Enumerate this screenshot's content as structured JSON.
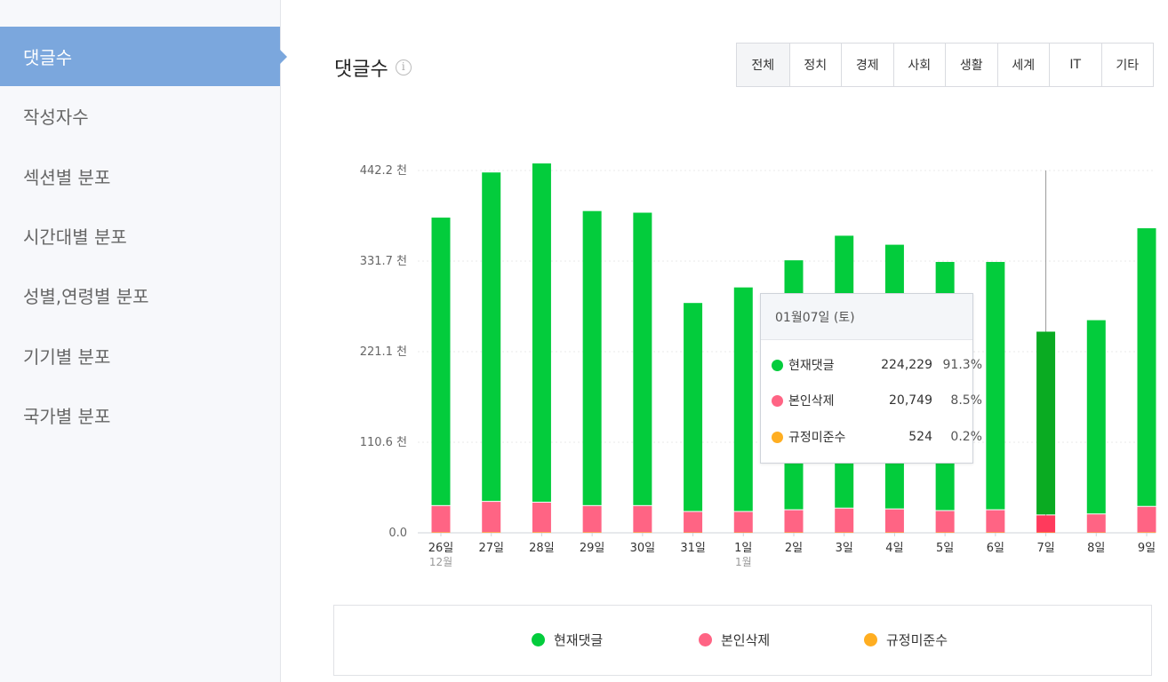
{
  "sidebar": {
    "items": [
      {
        "label": "댓글수",
        "active": true
      },
      {
        "label": "작성자수"
      },
      {
        "label": "섹션별 분포"
      },
      {
        "label": "시간대별 분포"
      },
      {
        "label": "성별,연령별 분포"
      },
      {
        "label": "기기별 분포"
      },
      {
        "label": "국가별 분포"
      }
    ]
  },
  "header": {
    "title": "댓글수",
    "info_icon": "i",
    "tabs": [
      "전체",
      "정치",
      "경제",
      "사회",
      "생활",
      "세계",
      "IT",
      "기타"
    ],
    "selected_tab": "전체"
  },
  "colors": {
    "green": "#03cc3c",
    "green_highlight": "#0aab22",
    "pink": "#ff6484",
    "pink_highlight": "#ff3a5c",
    "orange": "#ffae21"
  },
  "chart_data": {
    "type": "bar",
    "stacked": true,
    "y_ticks": [
      "0.0",
      "110.6 천",
      "221.1 천",
      "331.7 천",
      "442.2 천"
    ],
    "ylim": [
      0,
      442200
    ],
    "grid": true,
    "categories": [
      "26일",
      "27일",
      "28일",
      "29일",
      "30일",
      "31일",
      "1일",
      "2일",
      "3일",
      "4일",
      "5일",
      "6일",
      "7일",
      "8일",
      "9일"
    ],
    "month_labels": {
      "0": "12월",
      "6": "1월"
    },
    "highlight_index": 12,
    "series": [
      {
        "name": "현재댓글",
        "values": [
          352000,
          402000,
          414000,
          360000,
          358000,
          255000,
          274000,
          305000,
          333000,
          323000,
          304000,
          303000,
          224229,
          237000,
          340000
        ]
      },
      {
        "name": "본인삭제",
        "values": [
          32000,
          37000,
          36000,
          32000,
          32000,
          25000,
          25000,
          27000,
          29000,
          28000,
          26000,
          27000,
          20749,
          22000,
          31000
        ]
      },
      {
        "name": "규정미준수",
        "values": [
          700,
          800,
          800,
          700,
          700,
          500,
          500,
          600,
          600,
          600,
          600,
          600,
          524,
          500,
          700
        ]
      }
    ],
    "legend": "bottom"
  },
  "tooltip": {
    "date": "01월07일 (토)",
    "rows": [
      {
        "name": "현재댓글",
        "value": "224,229",
        "pct": "91.3%"
      },
      {
        "name": "본인삭제",
        "value": "20,749",
        "pct": "8.5%"
      },
      {
        "name": "규정미준수",
        "value": "524",
        "pct": "0.2%"
      }
    ]
  },
  "legend": {
    "items": [
      "현재댓글",
      "본인삭제",
      "규정미준수"
    ]
  }
}
